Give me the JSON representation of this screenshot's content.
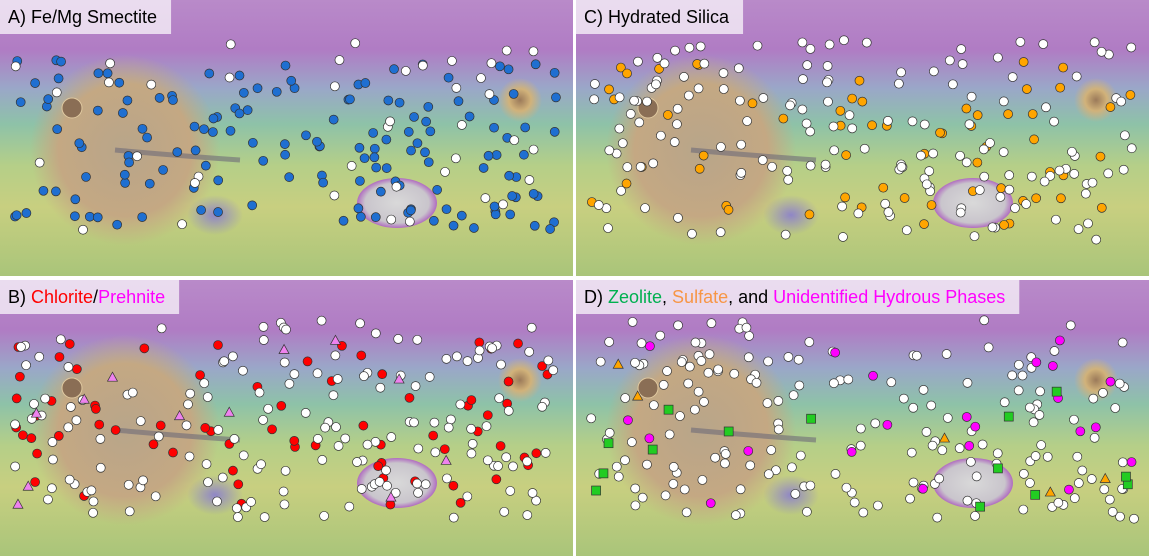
{
  "panels": [
    {
      "title": [
        {
          "text": "A) ",
          "color": "#000000"
        },
        {
          "text": "Fe/Mg Smectite",
          "color": "#000000"
        }
      ]
    },
    {
      "title": [
        {
          "text": "C) ",
          "color": "#000000"
        },
        {
          "text": "Hydrated Silica",
          "color": "#000000"
        }
      ]
    },
    {
      "title": [
        {
          "text": "B) ",
          "color": "#000000"
        },
        {
          "text": "Chlorite",
          "color": "#ff0000"
        },
        {
          "text": "/",
          "color": "#000000"
        },
        {
          "text": "Prehnite",
          "color": "#ff00ff"
        }
      ]
    },
    {
      "title": [
        {
          "text": "D) ",
          "color": "#000000"
        },
        {
          "text": "Zeolite",
          "color": "#00b050"
        },
        {
          "text": ", ",
          "color": "#000000"
        },
        {
          "text": "Sulfate",
          "color": "#f79646"
        },
        {
          "text": ", and ",
          "color": "#000000"
        },
        {
          "text": "Unidentified Hydrous Phases",
          "color": "#ff00ff"
        }
      ]
    }
  ]
}
